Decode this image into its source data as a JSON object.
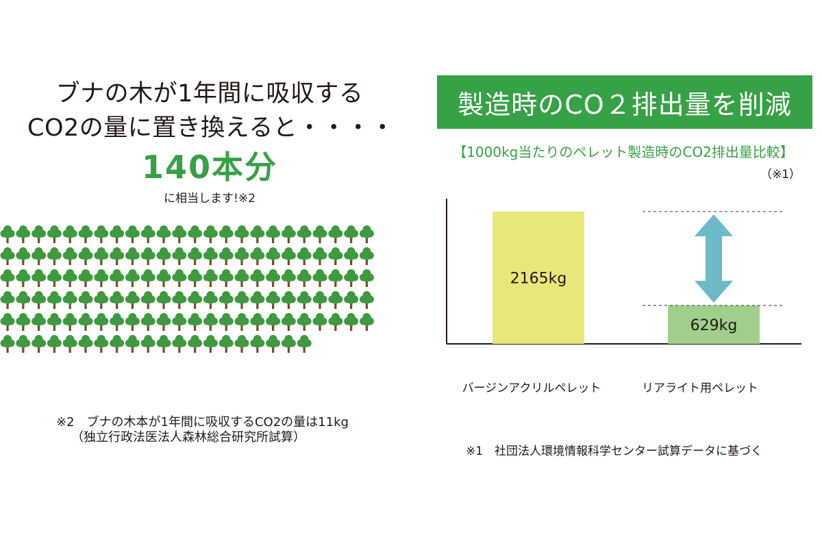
{
  "left": {
    "headline_line1": "ブナの木が1年間に吸収する",
    "headline_line2": "CO2の量に置き換えると・・・・",
    "big_number": "140本分",
    "equivalent_text": "に相当します!※2",
    "tree_count": 140,
    "note_line1": "※2　ブナの木本が1年間に吸収するCO2の量は11kg",
    "note_line2": "（独立行政法医法人森林総合研究所試算）"
  },
  "right": {
    "title": "製造時のCO２排出量を削減",
    "footnote": "※1　社団法人環境情報科学センター試算データに基づく"
  },
  "colors": {
    "brand_green": "#36a146",
    "bar_virgin": "#e8e87a",
    "bar_realite": "#9fcf8a",
    "arrow": "#6cb9c8",
    "tree_leaf": "#3f9a3f",
    "tree_trunk": "#7a4a2a"
  },
  "chart_data": {
    "type": "bar",
    "title": "【1000kg当たりのペレット製造時のCO2排出量比較】",
    "subtitle": "（※1）",
    "categories": [
      "バージンアクリルペレット",
      "リアライト用ペレット"
    ],
    "values": [
      2165,
      629
    ],
    "data_labels": [
      "2165kg",
      "629kg"
    ],
    "ylim": [
      0,
      2600
    ],
    "grid": false,
    "annotation": "double-arrow"
  }
}
